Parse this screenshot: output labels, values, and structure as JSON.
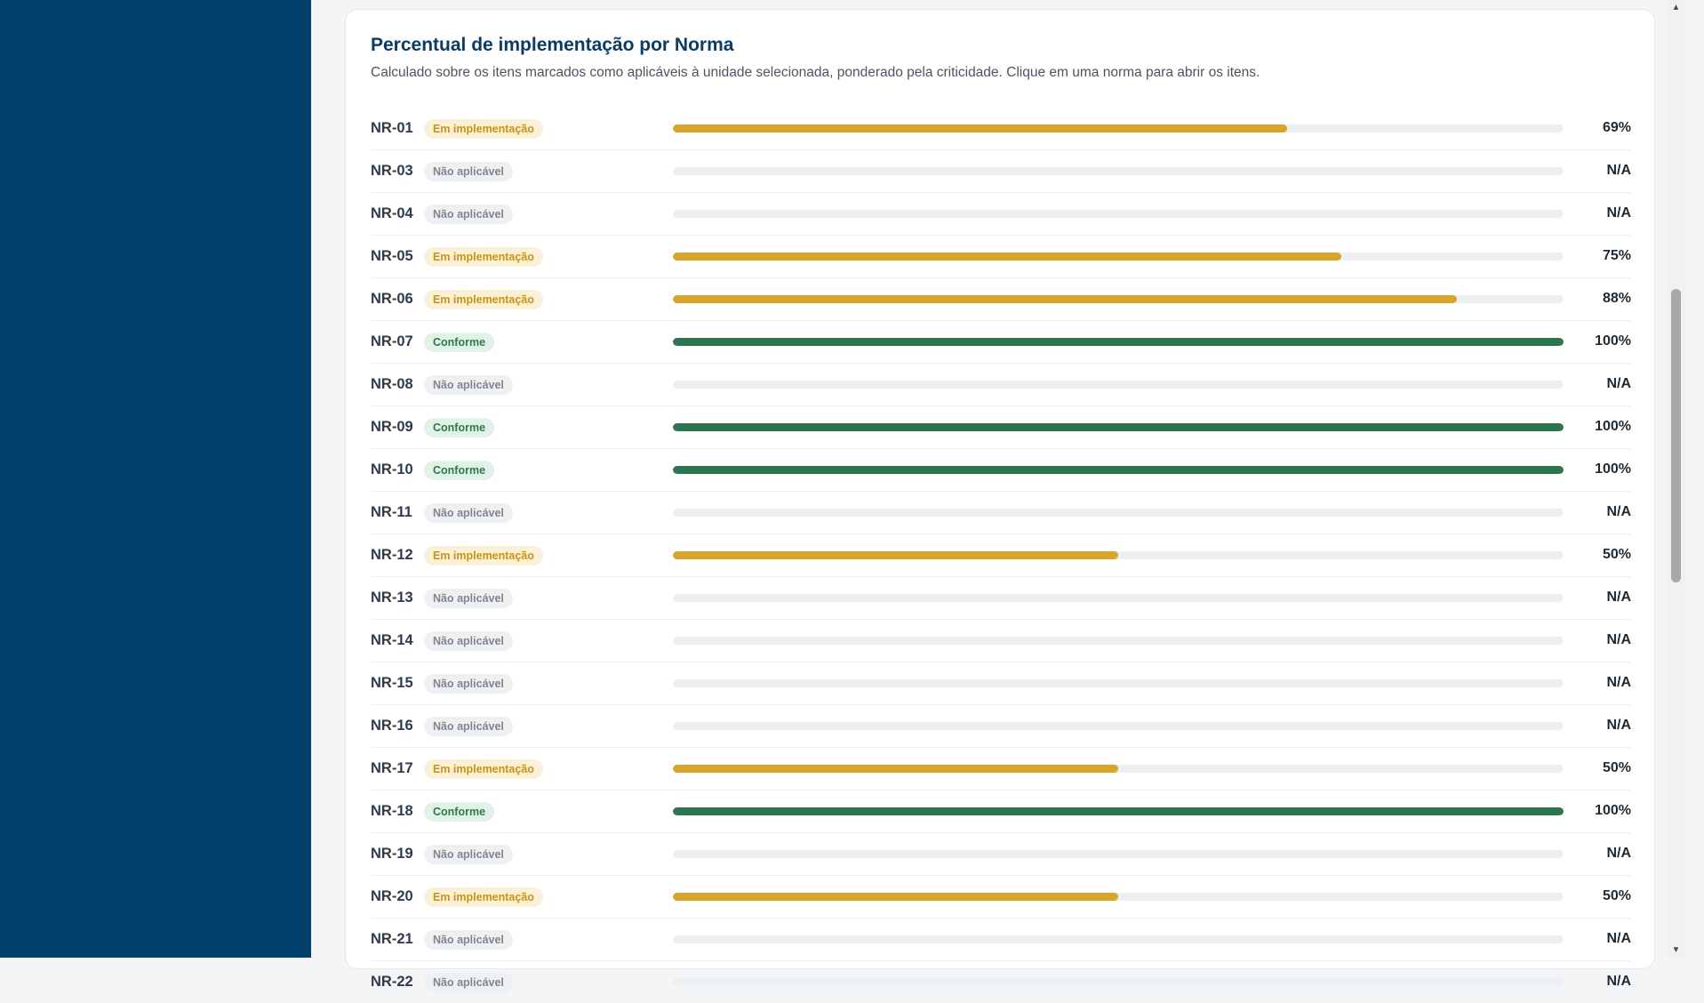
{
  "card": {
    "title": "Percentual de implementação por Norma",
    "subtitle": "Calculado sobre os itens marcados como aplicáveis à unidade selecionada, ponderado pela criticidade. Clique em uma norma para abrir os itens."
  },
  "status_colors": {
    "amber": "#d7a52c",
    "green": "#2d7551",
    "gray": "#edf0f2",
    "sidebar": "#033f6b"
  },
  "norms": [
    {
      "code": "NR-01",
      "status": "Em implementação",
      "tone": "amber",
      "percent": 69,
      "label": "69%"
    },
    {
      "code": "NR-03",
      "status": "Não aplicável",
      "tone": "gray",
      "percent": 0,
      "label": "N/A"
    },
    {
      "code": "NR-04",
      "status": "Não aplicável",
      "tone": "gray",
      "percent": 0,
      "label": "N/A"
    },
    {
      "code": "NR-05",
      "status": "Em implementação",
      "tone": "amber",
      "percent": 75,
      "label": "75%"
    },
    {
      "code": "NR-06",
      "status": "Em implementação",
      "tone": "amber",
      "percent": 88,
      "label": "88%"
    },
    {
      "code": "NR-07",
      "status": "Conforme",
      "tone": "green",
      "percent": 100,
      "label": "100%"
    },
    {
      "code": "NR-08",
      "status": "Não aplicável",
      "tone": "gray",
      "percent": 0,
      "label": "N/A"
    },
    {
      "code": "NR-09",
      "status": "Conforme",
      "tone": "green",
      "percent": 100,
      "label": "100%"
    },
    {
      "code": "NR-10",
      "status": "Conforme",
      "tone": "green",
      "percent": 100,
      "label": "100%"
    },
    {
      "code": "NR-11",
      "status": "Não aplicável",
      "tone": "gray",
      "percent": 0,
      "label": "N/A"
    },
    {
      "code": "NR-12",
      "status": "Em implementação",
      "tone": "amber",
      "percent": 50,
      "label": "50%"
    },
    {
      "code": "NR-13",
      "status": "Não aplicável",
      "tone": "gray",
      "percent": 0,
      "label": "N/A"
    },
    {
      "code": "NR-14",
      "status": "Não aplicável",
      "tone": "gray",
      "percent": 0,
      "label": "N/A"
    },
    {
      "code": "NR-15",
      "status": "Não aplicável",
      "tone": "gray",
      "percent": 0,
      "label": "N/A"
    },
    {
      "code": "NR-16",
      "status": "Não aplicável",
      "tone": "gray",
      "percent": 0,
      "label": "N/A"
    },
    {
      "code": "NR-17",
      "status": "Em implementação",
      "tone": "amber",
      "percent": 50,
      "label": "50%"
    },
    {
      "code": "NR-18",
      "status": "Conforme",
      "tone": "green",
      "percent": 100,
      "label": "100%"
    },
    {
      "code": "NR-19",
      "status": "Não aplicável",
      "tone": "gray",
      "percent": 0,
      "label": "N/A"
    },
    {
      "code": "NR-20",
      "status": "Em implementação",
      "tone": "amber",
      "percent": 50,
      "label": "50%"
    },
    {
      "code": "NR-21",
      "status": "Não aplicável",
      "tone": "gray",
      "percent": 0,
      "label": "N/A"
    },
    {
      "code": "NR-22",
      "status": "Não aplicável",
      "tone": "gray",
      "percent": 0,
      "label": "N/A"
    }
  ]
}
